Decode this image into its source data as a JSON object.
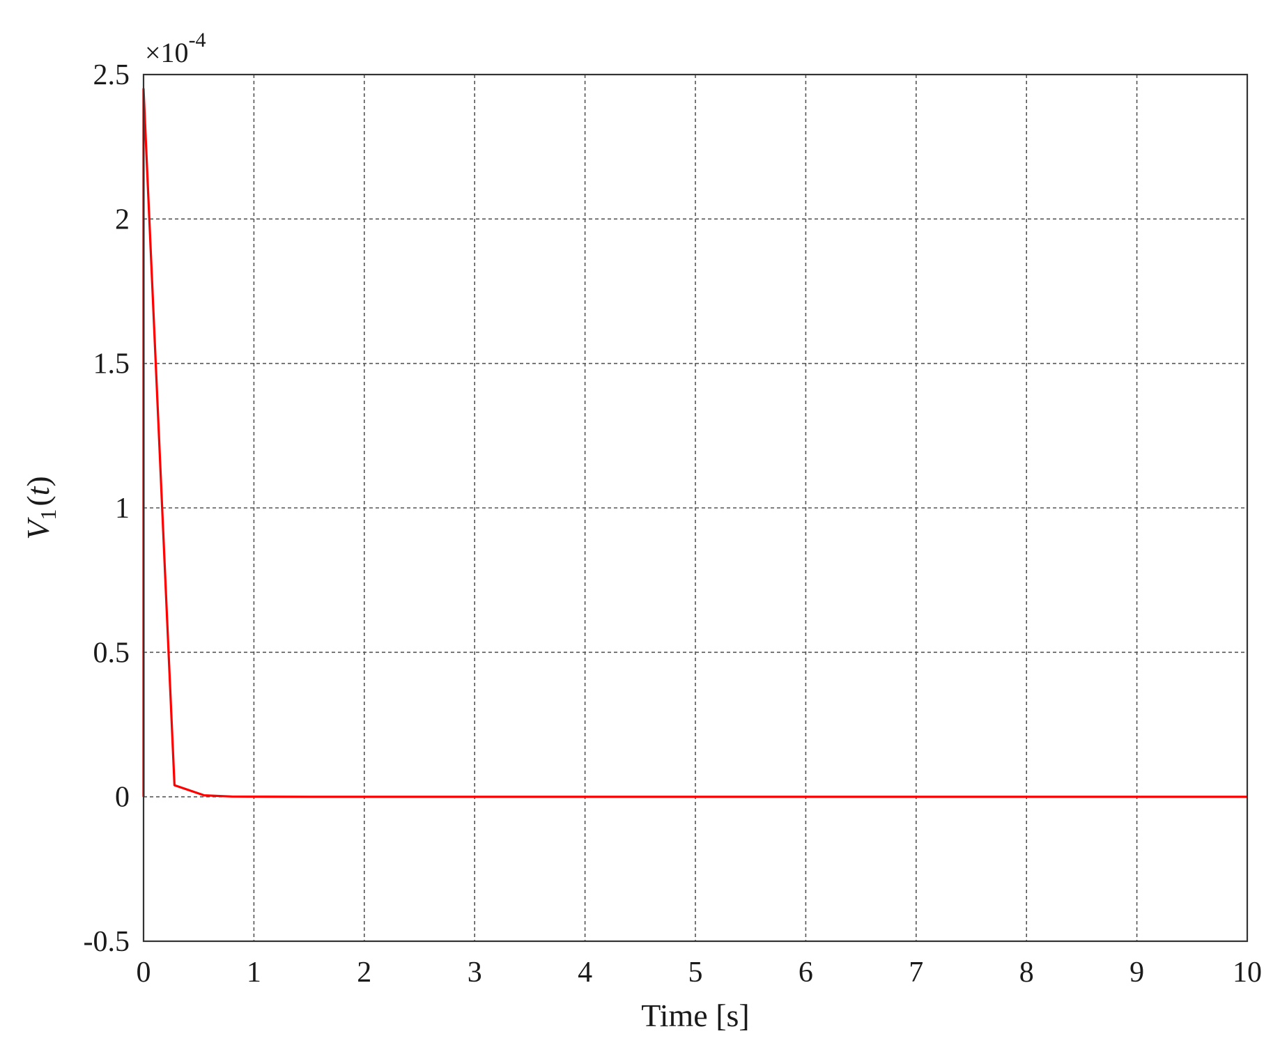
{
  "chart_data": {
    "type": "line",
    "title": "",
    "xlabel": "Time [s]",
    "ylabel_main": "V",
    "ylabel_sub": "1",
    "ylabel_paren_open": "(",
    "ylabel_var": "t",
    "ylabel_paren_close": ")",
    "y_multiplier_base": "×10",
    "y_multiplier_exp": "-4",
    "xlim": [
      0,
      10
    ],
    "ylim": [
      -0.5,
      2.5
    ],
    "grid": true,
    "x_ticks": [
      0,
      1,
      2,
      3,
      4,
      5,
      6,
      7,
      8,
      9,
      10
    ],
    "x_tick_labels": [
      "0",
      "1",
      "2",
      "3",
      "4",
      "5",
      "6",
      "7",
      "8",
      "9",
      "10"
    ],
    "y_ticks": [
      -0.5,
      0,
      0.5,
      1,
      1.5,
      2,
      2.5
    ],
    "y_tick_labels": [
      "-0.5",
      "0",
      "0.5",
      "1",
      "1.5",
      "2",
      "2.5"
    ],
    "series": [
      {
        "color": "#ff0000",
        "x": [
          0,
          0,
          0.28,
          0.55,
          0.8,
          1.5,
          3,
          5,
          7,
          10
        ],
        "y": [
          0,
          2.45,
          0.04,
          0.005,
          0.001,
          0.0,
          0.0,
          0.0,
          0.0,
          0.0
        ]
      }
    ]
  }
}
